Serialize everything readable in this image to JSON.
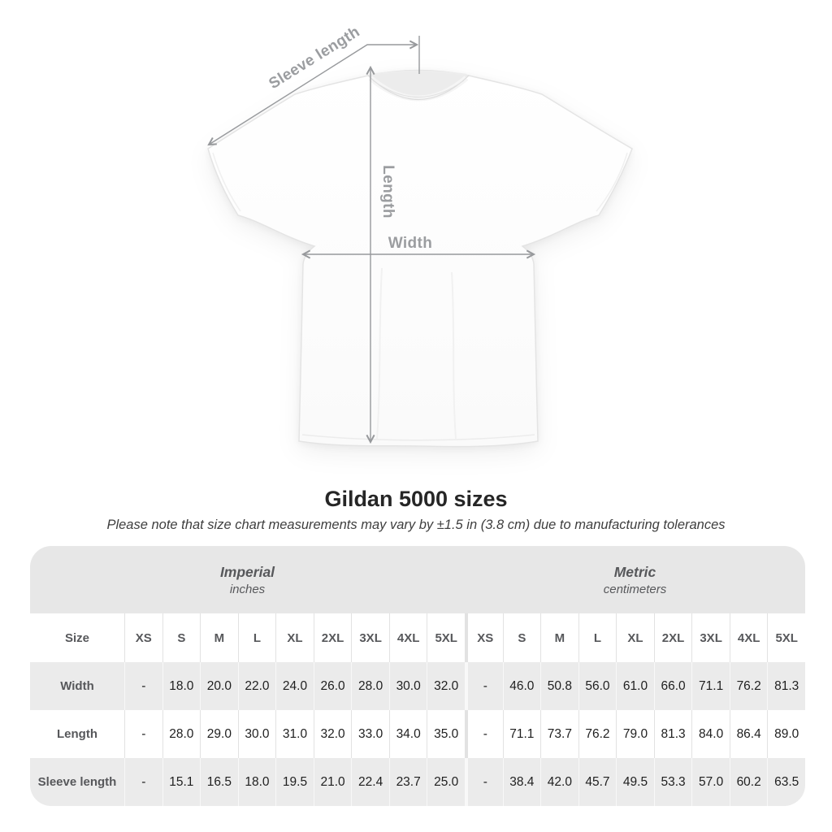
{
  "diagram": {
    "sleeve_label": "Sleeve length",
    "length_label": "Length",
    "width_label": "Width"
  },
  "chart_data": {
    "type": "table",
    "title": "Gildan 5000 sizes",
    "subtitle": "Please note that size chart measurements may vary by ±1.5 in (3.8 cm) due to manufacturing tolerances",
    "groups": [
      {
        "name": "Imperial",
        "unit": "inches"
      },
      {
        "name": "Metric",
        "unit": "centimeters"
      }
    ],
    "size_column_header": "Size",
    "sizes": [
      "XS",
      "S",
      "M",
      "L",
      "XL",
      "2XL",
      "3XL",
      "4XL",
      "5XL"
    ],
    "rows": [
      {
        "label": "Width",
        "imperial": [
          "-",
          "18.0",
          "20.0",
          "22.0",
          "24.0",
          "26.0",
          "28.0",
          "30.0",
          "32.0"
        ],
        "metric": [
          "-",
          "46.0",
          "50.8",
          "56.0",
          "61.0",
          "66.0",
          "71.1",
          "76.2",
          "81.3"
        ]
      },
      {
        "label": "Length",
        "imperial": [
          "-",
          "28.0",
          "29.0",
          "30.0",
          "31.0",
          "32.0",
          "33.0",
          "34.0",
          "35.0"
        ],
        "metric": [
          "-",
          "71.1",
          "73.7",
          "76.2",
          "79.0",
          "81.3",
          "84.0",
          "86.4",
          "89.0"
        ]
      },
      {
        "label": "Sleeve length",
        "imperial": [
          "-",
          "15.1",
          "16.5",
          "18.0",
          "19.5",
          "21.0",
          "22.4",
          "23.7",
          "25.0"
        ],
        "metric": [
          "-",
          "38.4",
          "42.0",
          "45.7",
          "49.5",
          "53.3",
          "57.0",
          "60.2",
          "63.5"
        ]
      }
    ]
  },
  "colors": {
    "band_bg": "#e7e7e7",
    "stripe_bg": "#ebebeb",
    "measure_line": "#97999c",
    "label_text": "#57585b",
    "value_text": "#1f1f1f"
  }
}
